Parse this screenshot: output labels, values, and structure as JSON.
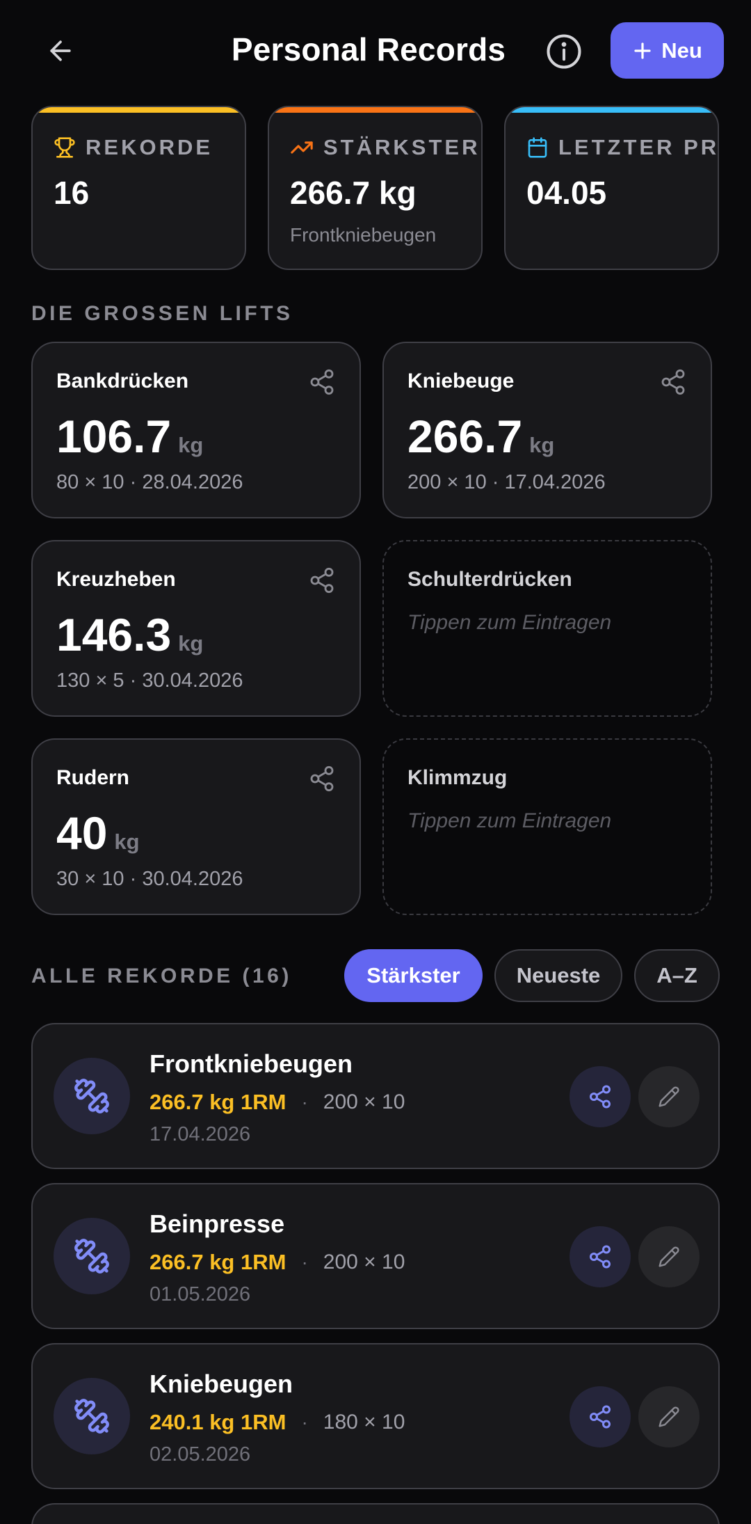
{
  "header": {
    "title": "Personal Records",
    "new_label": "Neu"
  },
  "stats": [
    {
      "label": "REKORDE",
      "value": "16",
      "sub": "",
      "icon": "trophy-icon",
      "color": "#fbbf24"
    },
    {
      "label": "STÄRKSTER",
      "value": "266.7 kg",
      "sub": "Frontkniebeugen",
      "icon": "trending-up-icon",
      "color": "#f97316"
    },
    {
      "label": "LETZTER PR",
      "value": "04.05",
      "sub": "",
      "icon": "calendar-icon",
      "color": "#38bdf8"
    }
  ],
  "big_lifts": {
    "heading": "DIE GROSSEN LIFTS",
    "unit": "kg",
    "empty_hint": "Tippen zum Eintragen",
    "items": [
      {
        "name": "Bankdrücken",
        "value": "106.7",
        "meta": "80 × 10 · 28.04.2026"
      },
      {
        "name": "Kniebeuge",
        "value": "266.7",
        "meta": "200 × 10 · 17.04.2026"
      },
      {
        "name": "Kreuzheben",
        "value": "146.3",
        "meta": "130 × 5 · 30.04.2026"
      },
      {
        "name": "Schulterdrücken",
        "value": "",
        "meta": ""
      },
      {
        "name": "Rudern",
        "value": "40",
        "meta": "30 × 10 · 30.04.2026"
      },
      {
        "name": "Klimmzug",
        "value": "",
        "meta": ""
      }
    ]
  },
  "all_records": {
    "heading": "ALLE REKORDE (16)",
    "sort_options": [
      "Stärkster",
      "Neueste",
      "A–Z"
    ],
    "active_sort": "Stärkster",
    "items": [
      {
        "name": "Frontkniebeugen",
        "one_rm": "266.7 kg 1RM",
        "sets": "200 × 10",
        "date": "17.04.2026"
      },
      {
        "name": "Beinpresse",
        "one_rm": "266.7 kg 1RM",
        "sets": "200 × 10",
        "date": "01.05.2026"
      },
      {
        "name": "Kniebeugen",
        "one_rm": "240.1 kg 1RM",
        "sets": "180 × 10",
        "date": "02.05.2026"
      }
    ]
  },
  "colors": {
    "accent": "#6366f1",
    "gold": "#fbbf24",
    "background": "#09090b",
    "card": "#18181b"
  }
}
